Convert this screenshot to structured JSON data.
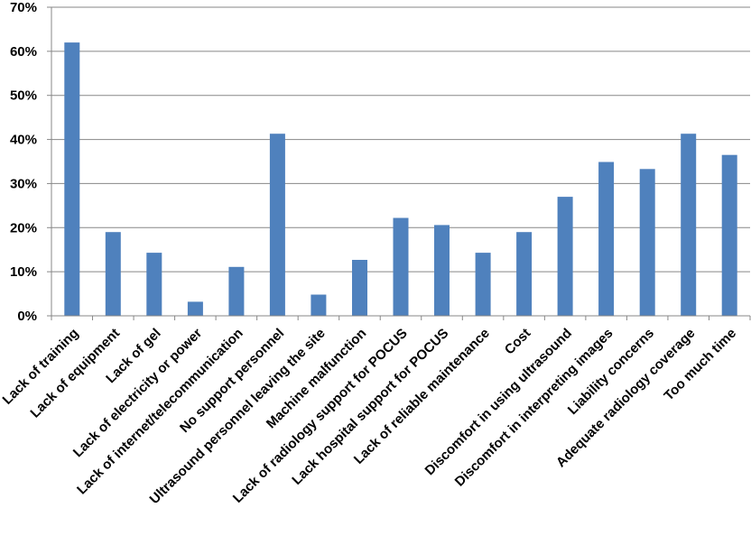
{
  "chart_data": {
    "type": "bar",
    "categories": [
      "Lack of training",
      "Lack of  equipment",
      "Lack of gel",
      "Lack of electricity or power",
      "Lack of internet/telecommunication",
      "No support personnel",
      "Ultrasound personnel leaving the site",
      "Machine malfunction",
      "Lack of  radiology support for POCUS",
      "Lack hospital support for POCUS",
      "Lack of reliable maintenance",
      "Cost",
      "Discomfort in using ultrasound",
      "Discomfort in interpreting images",
      "Liability concerns",
      "Adequate radiology coverage",
      "Too much time"
    ],
    "values": [
      62,
      19,
      14.3,
      3.2,
      11.1,
      41.3,
      4.8,
      12.7,
      22.2,
      20.6,
      14.3,
      19,
      27,
      34.9,
      33.3,
      41.3,
      36.5
    ],
    "yticks": [
      "0%",
      "10%",
      "20%",
      "30%",
      "40%",
      "50%",
      "60%",
      "70%"
    ],
    "ylim": [
      0,
      70
    ],
    "grid": true,
    "bar_color": "#4F81BD",
    "grid_color": "#878787",
    "title": "",
    "xlabel": "",
    "ylabel": ""
  }
}
